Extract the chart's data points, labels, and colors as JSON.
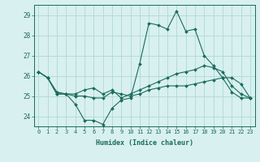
{
  "xlabel": "Humidex (Indice chaleur)",
  "x": [
    0,
    1,
    2,
    3,
    4,
    5,
    6,
    7,
    8,
    9,
    10,
    11,
    12,
    13,
    14,
    15,
    16,
    17,
    18,
    19,
    20,
    21,
    22,
    23
  ],
  "line1": [
    26.2,
    25.9,
    25.1,
    25.1,
    24.6,
    23.8,
    23.8,
    23.6,
    24.4,
    24.8,
    24.9,
    26.6,
    28.6,
    28.5,
    28.3,
    29.2,
    28.2,
    28.3,
    27.0,
    26.5,
    25.9,
    25.2,
    24.9,
    24.9
  ],
  "line2": [
    26.2,
    25.9,
    25.2,
    25.1,
    25.1,
    25.3,
    25.4,
    25.1,
    25.3,
    24.9,
    25.1,
    25.3,
    25.5,
    25.7,
    25.9,
    26.1,
    26.2,
    26.3,
    26.5,
    26.4,
    26.2,
    25.5,
    25.1,
    24.9
  ],
  "line3": [
    26.2,
    25.9,
    25.1,
    25.1,
    25.0,
    25.0,
    24.9,
    24.9,
    25.2,
    25.1,
    25.0,
    25.1,
    25.3,
    25.4,
    25.5,
    25.5,
    25.5,
    25.6,
    25.7,
    25.8,
    25.9,
    25.9,
    25.6,
    24.9
  ],
  "line_color": "#1a6b5e",
  "bg_color": "#d8f0f0",
  "grid_color": "#b0d8d8",
  "ylim": [
    23.5,
    29.5
  ],
  "yticks": [
    24,
    25,
    26,
    27,
    28,
    29
  ],
  "xlim": [
    -0.5,
    23.5
  ]
}
